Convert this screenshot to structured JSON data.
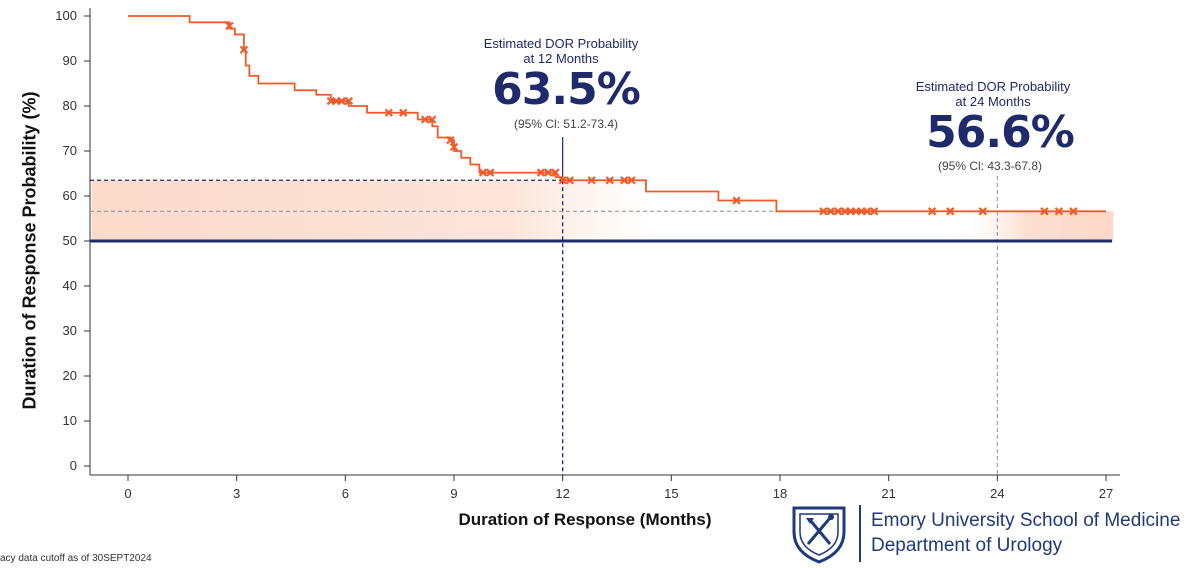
{
  "chart_data": {
    "type": "line",
    "title": "",
    "xlabel": "Duration of Response (Months)",
    "ylabel": "Duration of Response Probability (%)",
    "xlim": [
      0,
      27
    ],
    "ylim": [
      0,
      100
    ],
    "x_ticks": [
      0,
      3,
      6,
      9,
      12,
      15,
      18,
      21,
      24,
      27
    ],
    "y_ticks": [
      0,
      10,
      20,
      30,
      40,
      50,
      60,
      70,
      80,
      90,
      100
    ],
    "grid": false,
    "series": [
      {
        "color": "#f05a28",
        "steps": [
          [
            0,
            100
          ],
          [
            1.7,
            98.6
          ],
          [
            2.8,
            97.2
          ],
          [
            2.95,
            95.9
          ],
          [
            3.2,
            92.3
          ],
          [
            3.25,
            89.0
          ],
          [
            3.35,
            86.7
          ],
          [
            3.6,
            85.0
          ],
          [
            4.6,
            83.5
          ],
          [
            5.2,
            82.5
          ],
          [
            5.6,
            81.1
          ],
          [
            6.1,
            80.0
          ],
          [
            6.6,
            78.5
          ],
          [
            8.0,
            77.0
          ],
          [
            8.4,
            75.5
          ],
          [
            8.55,
            73.0
          ],
          [
            8.9,
            72.4
          ],
          [
            9.0,
            70.0
          ],
          [
            9.2,
            68.5
          ],
          [
            9.45,
            67.0
          ],
          [
            9.7,
            65.2
          ],
          [
            11.3,
            65.2
          ],
          [
            11.8,
            64.2
          ],
          [
            12.0,
            63.5
          ],
          [
            14.3,
            61.0
          ],
          [
            16.3,
            59.0
          ],
          [
            17.9,
            56.6
          ],
          [
            27.0,
            56.6
          ]
        ],
        "censored": [
          [
            2.8,
            97.8
          ],
          [
            3.2,
            92.5
          ],
          [
            5.6,
            81.1
          ],
          [
            5.75,
            81.1
          ],
          [
            5.9,
            81.1
          ],
          [
            6.1,
            81.1
          ],
          [
            7.2,
            78.5
          ],
          [
            7.6,
            78.5
          ],
          [
            8.2,
            77.0
          ],
          [
            8.4,
            77.0
          ],
          [
            8.9,
            72.4
          ],
          [
            9.0,
            70.9
          ],
          [
            9.8,
            65.2
          ],
          [
            10.0,
            65.2
          ],
          [
            11.4,
            65.2
          ],
          [
            11.6,
            65.2
          ],
          [
            11.8,
            65.2
          ],
          [
            12.0,
            63.5
          ],
          [
            12.2,
            63.5
          ],
          [
            12.8,
            63.5
          ],
          [
            13.3,
            63.5
          ],
          [
            13.7,
            63.5
          ],
          [
            13.9,
            63.5
          ],
          [
            16.8,
            59.0
          ],
          [
            19.2,
            56.6
          ],
          [
            19.4,
            56.6
          ],
          [
            19.6,
            56.6
          ],
          [
            19.8,
            56.6
          ],
          [
            19.95,
            56.6
          ],
          [
            20.1,
            56.6
          ],
          [
            20.25,
            56.6
          ],
          [
            20.4,
            56.6
          ],
          [
            20.6,
            56.6
          ],
          [
            22.2,
            56.6
          ],
          [
            22.7,
            56.6
          ],
          [
            23.6,
            56.6
          ],
          [
            25.3,
            56.6
          ],
          [
            25.7,
            56.6
          ],
          [
            26.1,
            56.6
          ]
        ]
      }
    ],
    "reference_line_y": 50,
    "reference_line_color": "#1f2a6b",
    "markers": [
      {
        "x": 12,
        "y": 63.5,
        "color": "#1f2a6b"
      },
      {
        "x": 24,
        "y": 56.6,
        "color": "#999999"
      }
    ],
    "annotations": [
      {
        "heading": [
          "Estimated DOR Probability",
          "at 12 Months"
        ],
        "value": "63.5%",
        "ci": "(95% Cl: 51.2-73.4)"
      },
      {
        "heading": [
          "Estimated DOR Probability",
          "at 24 Months"
        ],
        "value": "56.6%",
        "ci": "(95% Cl: 43.3-67.8)"
      }
    ]
  },
  "footnote": "acy data cutoff as of 30SEPT2024",
  "logo": {
    "line1": "Emory University School of Medicine",
    "line2": "Department of Urology",
    "color": "#1f3a7a"
  }
}
